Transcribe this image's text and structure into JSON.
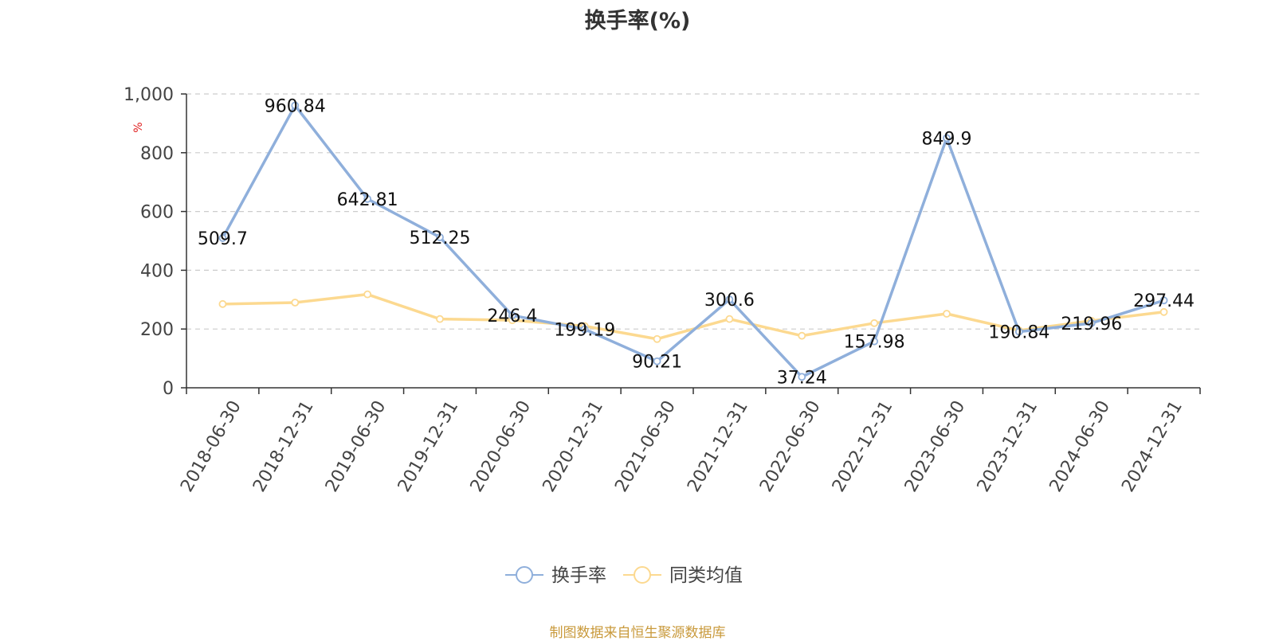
{
  "title": "换手率(%)",
  "source_text": "制图数据来自恒生聚源数据库",
  "chart_data": {
    "type": "line",
    "title": "换手率(%)",
    "xlabel": "",
    "ylabel": "%",
    "ylim": [
      0,
      1000
    ],
    "yticks": [
      0,
      200,
      400,
      600,
      800,
      1000
    ],
    "ytick_labels": [
      "0",
      "200",
      "400",
      "600",
      "800",
      "1,000"
    ],
    "grid": true,
    "legend_position": "bottom-center",
    "categories": [
      "2018-06-30",
      "2018-12-31",
      "2019-06-30",
      "2019-12-31",
      "2020-06-30",
      "2020-12-31",
      "2021-06-30",
      "2021-12-31",
      "2022-06-30",
      "2022-12-31",
      "2023-06-30",
      "2023-12-31",
      "2024-06-30",
      "2024-12-31"
    ],
    "series": [
      {
        "name": "换手率",
        "color": "#8fafdb",
        "values": [
          509.7,
          960.84,
          642.81,
          512.25,
          246.4,
          199.19,
          90.21,
          300.6,
          37.24,
          157.98,
          849.9,
          190.84,
          219.96,
          297.44
        ],
        "labels": [
          "509.7",
          "960.84",
          "642.81",
          "512.25",
          "246.4",
          "199.19",
          "90.21",
          "300.6",
          "37.24",
          "157.98",
          "849.9",
          "190.84",
          "219.96",
          "297.44"
        ]
      },
      {
        "name": "同类均值",
        "color": "#fcd990",
        "values": [
          285,
          290,
          318,
          234,
          230,
          210,
          166,
          234,
          177,
          220,
          252,
          195,
          228,
          258
        ]
      }
    ]
  }
}
